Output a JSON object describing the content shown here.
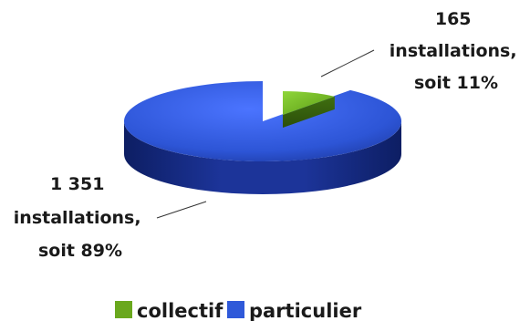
{
  "chart_data": {
    "type": "pie",
    "three_d": true,
    "series": [
      {
        "name": "collectif",
        "value": 165,
        "percent": 11,
        "color": "#6aa81e",
        "label_lines": [
          "165",
          "installations,",
          "soit 11%"
        ]
      },
      {
        "name": "particulier",
        "value": 1351,
        "percent": 89,
        "color": "#2f59d9",
        "label_lines": [
          "1 351",
          "installations,",
          "soit 89%"
        ]
      }
    ],
    "legend": {
      "position": "bottom",
      "items": [
        "collectif",
        "particulier"
      ]
    }
  }
}
